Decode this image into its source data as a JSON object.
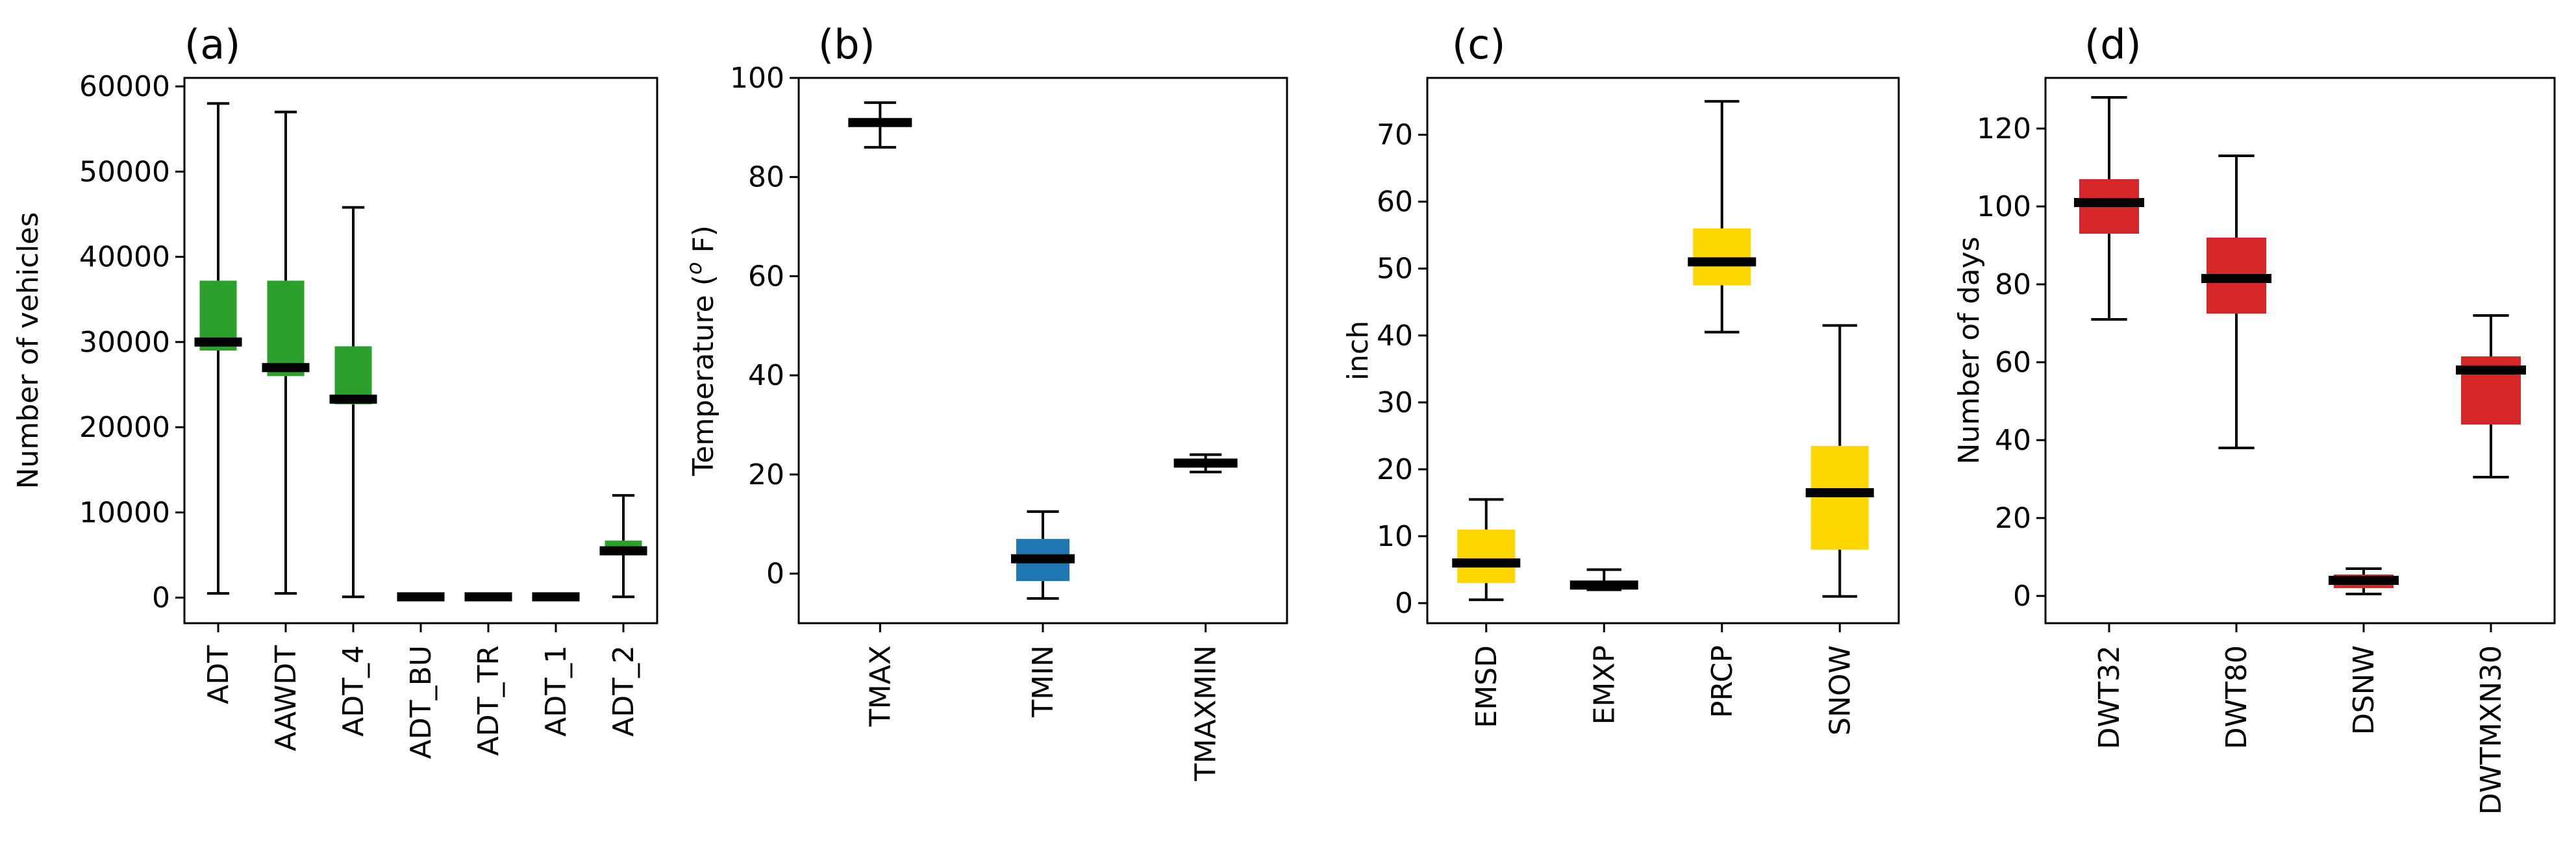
{
  "chart_data": [
    {
      "panel": "(a)",
      "type": "box",
      "title": "(a)",
      "xlabel": "",
      "ylabel": "Number of vehicles",
      "ylim": [
        -3000,
        61000
      ],
      "yticks": [
        0,
        10000,
        20000,
        30000,
        40000,
        50000,
        60000
      ],
      "ytick_labels": [
        "0",
        "10000",
        "20000",
        "30000",
        "40000",
        "50000",
        "60000"
      ],
      "categories": [
        "ADT",
        "AAWDT",
        "ADT_4",
        "ADT_BU",
        "ADT_TR",
        "ADT_1",
        "ADT_2"
      ],
      "color": "#2ca02c",
      "boxes": [
        {
          "label": "ADT",
          "whislo": 500,
          "q1": 29000,
          "med": 30000,
          "q3": 37200,
          "whishi": 58000
        },
        {
          "label": "AAWDT",
          "whislo": 500,
          "q1": 26000,
          "med": 27000,
          "q3": 37200,
          "whishi": 57000
        },
        {
          "label": "ADT_4",
          "whislo": 100,
          "q1": 22700,
          "med": 23300,
          "q3": 29500,
          "whishi": 45800
        },
        {
          "label": "ADT_BU",
          "whislo": 0,
          "q1": 0,
          "med": 100,
          "q3": 200,
          "whishi": 300
        },
        {
          "label": "ADT_TR",
          "whislo": 0,
          "q1": 0,
          "med": 100,
          "q3": 200,
          "whishi": 300
        },
        {
          "label": "ADT_1",
          "whislo": 0,
          "q1": 0,
          "med": 100,
          "q3": 200,
          "whishi": 300
        },
        {
          "label": "ADT_2",
          "whislo": 100,
          "q1": 5000,
          "med": 5500,
          "q3": 6700,
          "whishi": 12000
        }
      ]
    },
    {
      "panel": "(b)",
      "type": "box",
      "title": "(b)",
      "xlabel": "",
      "ylabel": "Temperature (",
      "ylabel_sup": "o",
      "ylabel_tail": " F)",
      "ylim": [
        -10,
        100
      ],
      "yticks": [
        0,
        20,
        40,
        60,
        80,
        100
      ],
      "ytick_labels": [
        "0",
        "20",
        "40",
        "60",
        "80",
        "100"
      ],
      "categories": [
        "TMAX",
        "TMIN",
        "TMAXMIN"
      ],
      "boxes": [
        {
          "label": "TMAX",
          "whislo": 86,
          "q1": 90.3,
          "med": 91,
          "q3": 91.7,
          "whishi": 95,
          "color": "#1f77b4"
        },
        {
          "label": "TMIN",
          "whislo": -5,
          "q1": -1.5,
          "med": 3,
          "q3": 7,
          "whishi": 12.5,
          "color": "#1f77b4"
        },
        {
          "label": "TMAXMIN",
          "whislo": 20.5,
          "q1": 21.8,
          "med": 22.3,
          "q3": 22.8,
          "whishi": 24,
          "color": "#1f77b4"
        }
      ]
    },
    {
      "panel": "(c)",
      "type": "box",
      "title": "(c)",
      "xlabel": "",
      "ylabel": "inch",
      "ylim": [
        -3,
        78.5
      ],
      "yticks": [
        0,
        10,
        20,
        30,
        40,
        50,
        60,
        70
      ],
      "ytick_labels": [
        "0",
        "10",
        "20",
        "30",
        "40",
        "50",
        "60",
        "70"
      ],
      "categories": [
        "EMSD",
        "EMXP",
        "PRCP",
        "SNOW"
      ],
      "color": "#ffd700",
      "boxes": [
        {
          "label": "EMSD",
          "whislo": 0.5,
          "q1": 3,
          "med": 6,
          "q3": 11,
          "whishi": 15.5
        },
        {
          "label": "EMXP",
          "whislo": 2,
          "q1": 2.3,
          "med": 2.7,
          "q3": 3.2,
          "whishi": 5
        },
        {
          "label": "PRCP",
          "whislo": 40.5,
          "q1": 47.5,
          "med": 51,
          "q3": 56,
          "whishi": 75
        },
        {
          "label": "SNOW",
          "whislo": 1,
          "q1": 8,
          "med": 16.5,
          "q3": 23.5,
          "whishi": 41.5
        }
      ]
    },
    {
      "panel": "(d)",
      "type": "box",
      "title": "(d)",
      "xlabel": "",
      "ylabel": "Number of days",
      "ylim": [
        -7,
        133
      ],
      "yticks": [
        0,
        20,
        40,
        60,
        80,
        100,
        120
      ],
      "ytick_labels": [
        "0",
        "20",
        "40",
        "60",
        "80",
        "100",
        "120"
      ],
      "categories": [
        "DWT32",
        "DWT80",
        "DSNW",
        "DWTMXN30"
      ],
      "color": "#d62728",
      "boxes": [
        {
          "label": "DWT32",
          "whislo": 71,
          "q1": 93,
          "med": 101,
          "q3": 107,
          "whishi": 128
        },
        {
          "label": "DWT80",
          "whislo": 38,
          "q1": 72.5,
          "med": 81.5,
          "q3": 92,
          "whishi": 113
        },
        {
          "label": "DSNW",
          "whislo": 0.5,
          "q1": 2,
          "med": 4,
          "q3": 5.5,
          "whishi": 7
        },
        {
          "label": "DWTMXN30",
          "whislo": 30.5,
          "q1": 44,
          "med": 58,
          "q3": 61.5,
          "whishi": 72
        }
      ]
    }
  ]
}
